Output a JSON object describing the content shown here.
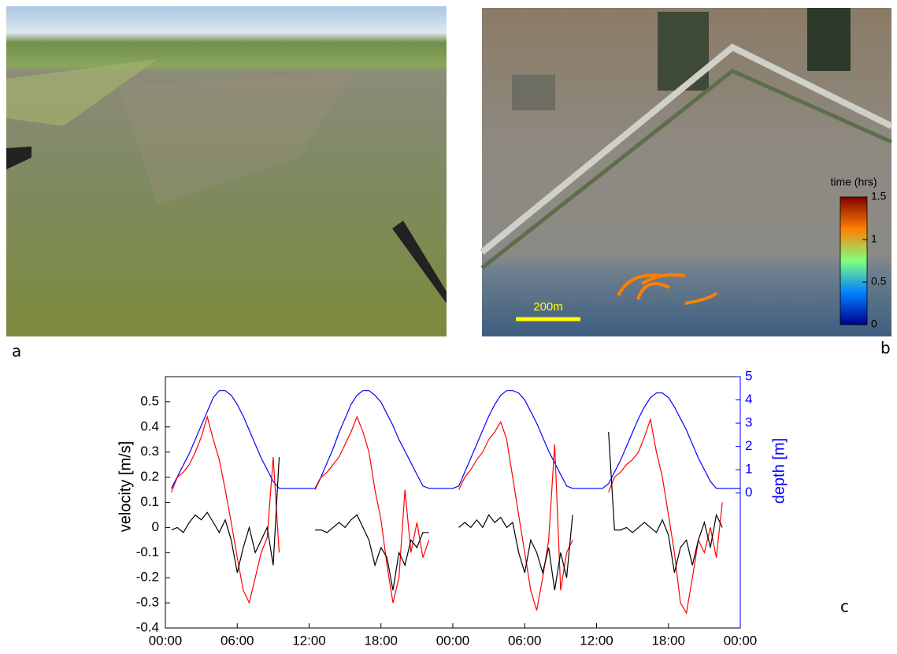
{
  "panel_labels": [
    "a",
    "b",
    "c"
  ],
  "map_overlay": {
    "colorbar_title": "time (hrs)",
    "colorbar_lim": [
      0,
      1.5
    ],
    "colorbar_ticks": [
      0,
      0.5,
      1,
      1.5
    ],
    "scale_label": "200m"
  },
  "chart_data": {
    "type": "line",
    "ylabel": "velocity [m/s]",
    "y2label": "depth [m]",
    "x": [
      0.5,
      1,
      1.5,
      2,
      2.5,
      3,
      3.5,
      4,
      4.5,
      5,
      5.5,
      6,
      6.5,
      7,
      7.5,
      8,
      8.5,
      9,
      9.5,
      10,
      10.5,
      11,
      11.5,
      12,
      12.5,
      13,
      13.5,
      14,
      14.5,
      15,
      15.5,
      16,
      16.5,
      17,
      17.5,
      18,
      18.5,
      19,
      19.5,
      20,
      20.5,
      21,
      21.5,
      22,
      22.5,
      23,
      23.5,
      24,
      24.5,
      25,
      25.5,
      26,
      26.5,
      27,
      27.5,
      28,
      28.5,
      29,
      29.5,
      30,
      30.5,
      31,
      31.5,
      32,
      32.5,
      33,
      33.5,
      34,
      34.5,
      35,
      35.5,
      36,
      36.5,
      37,
      37.5,
      38,
      38.5,
      39,
      39.5,
      40,
      40.5,
      41,
      41.5,
      42,
      42.5,
      43,
      43.5,
      44,
      44.5,
      45,
      45.5,
      46,
      46.5,
      47,
      47.5,
      48
    ],
    "xlim": [
      0,
      48
    ],
    "xticks": [
      {
        "value": 0,
        "label": "00:00"
      },
      {
        "value": 6,
        "label": "06:00"
      },
      {
        "value": 12,
        "label": "12:00"
      },
      {
        "value": 18,
        "label": "18:00"
      },
      {
        "value": 24,
        "label": "00:00"
      },
      {
        "value": 30,
        "label": "06:00"
      },
      {
        "value": 36,
        "label": "12:00"
      },
      {
        "value": 42,
        "label": "18:00"
      },
      {
        "value": 48,
        "label": "00:00"
      }
    ],
    "ylim": [
      -0.4,
      0.6
    ],
    "yticks": [
      -0.4,
      -0.3,
      -0.2,
      -0.1,
      0,
      0.1,
      0.2,
      0.3,
      0.4,
      0.5
    ],
    "y2lim": [
      -5.8,
      5
    ],
    "y2ticks": [
      0,
      1,
      2,
      3,
      4,
      5
    ],
    "y2color": "#0000ff",
    "series": [
      {
        "color": "#0000ff",
        "axis": "y2",
        "values": [
          0.2,
          0.7,
          1.2,
          1.7,
          2.3,
          2.9,
          3.5,
          4.1,
          4.4,
          4.4,
          4.2,
          3.8,
          3.3,
          2.7,
          2.1,
          1.5,
          1.0,
          0.5,
          0.2,
          0.2,
          0.2,
          0.2,
          0.2,
          0.2,
          0.2,
          0.7,
          1.3,
          1.9,
          2.6,
          3.2,
          3.8,
          4.2,
          4.4,
          4.4,
          4.2,
          3.9,
          3.4,
          2.9,
          2.3,
          1.8,
          1.3,
          0.8,
          0.3,
          0.2,
          0.2,
          0.2,
          0.2,
          0.2,
          0.3,
          0.9,
          1.5,
          2.1,
          2.7,
          3.3,
          3.8,
          4.2,
          4.4,
          4.4,
          4.3,
          4.0,
          3.5,
          3.0,
          2.4,
          1.8,
          1.3,
          0.8,
          0.3,
          0.2,
          0.2,
          0.2,
          0.2,
          0.2,
          0.2,
          0.4,
          0.9,
          1.4,
          2.0,
          2.6,
          3.2,
          3.7,
          4.1,
          4.3,
          4.3,
          4.1,
          3.7,
          3.2,
          2.7,
          2.1,
          1.5,
          1.0,
          0.5,
          0.2,
          0.2,
          0.2,
          0.2,
          0.2
        ]
      },
      {
        "color": "#ff0000",
        "values": [
          0.14,
          0.2,
          0.22,
          0.25,
          0.3,
          0.36,
          0.44,
          0.35,
          0.27,
          0.15,
          0.02,
          -0.12,
          -0.25,
          -0.3,
          -0.2,
          -0.1,
          -0.04,
          0.28,
          -0.1,
          null,
          null,
          null,
          null,
          null,
          0.15,
          0.2,
          0.22,
          0.25,
          0.28,
          0.33,
          0.38,
          0.44,
          0.38,
          0.3,
          0.15,
          0.03,
          -0.15,
          -0.3,
          -0.2,
          0.15,
          -0.1,
          0.02,
          -0.12,
          -0.05,
          null,
          null,
          null,
          null,
          0.15,
          0.2,
          0.23,
          0.27,
          0.3,
          0.35,
          0.38,
          0.42,
          0.35,
          0.2,
          0.05,
          -0.1,
          -0.25,
          -0.33,
          -0.2,
          -0.05,
          0.33,
          -0.25,
          -0.1,
          -0.05,
          null,
          null,
          null,
          null,
          null,
          0.14,
          0.2,
          0.22,
          0.25,
          0.27,
          0.3,
          0.36,
          0.43,
          0.3,
          0.2,
          0.05,
          -0.1,
          -0.3,
          -0.34,
          -0.2,
          -0.05,
          -0.1,
          0,
          -0.12,
          0.1,
          null,
          null,
          null
        ]
      },
      {
        "color": "#000000",
        "values": [
          -0.01,
          0,
          -0.02,
          0.02,
          0.05,
          0.03,
          0.06,
          0.02,
          -0.02,
          0.03,
          -0.05,
          -0.18,
          -0.08,
          0,
          -0.1,
          -0.05,
          0,
          -0.15,
          0.28,
          null,
          null,
          null,
          null,
          null,
          -0.01,
          -0.01,
          -0.02,
          0,
          0.02,
          0,
          0.03,
          0.05,
          0,
          -0.05,
          -0.15,
          -0.08,
          -0.12,
          -0.25,
          -0.1,
          -0.15,
          -0.05,
          -0.08,
          -0.02,
          -0.02,
          null,
          null,
          null,
          null,
          0,
          0.02,
          0,
          0.03,
          0,
          0.05,
          0.02,
          0.04,
          0,
          0.02,
          -0.1,
          -0.18,
          -0.05,
          -0.1,
          -0.18,
          -0.08,
          -0.25,
          -0.1,
          -0.2,
          0.05,
          null,
          null,
          null,
          null,
          null,
          0.38,
          -0.01,
          -0.01,
          0,
          -0.02,
          0,
          0.02,
          0,
          -0.02,
          0.03,
          -0.03,
          -0.18,
          -0.08,
          -0.05,
          -0.15,
          -0.05,
          0.02,
          -0.08,
          0.05,
          0,
          null,
          null,
          null
        ]
      }
    ]
  }
}
